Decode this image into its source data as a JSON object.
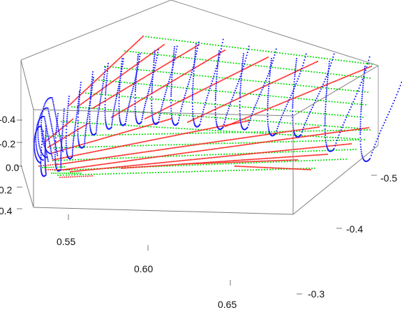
{
  "chart_data": {
    "type": "scatter",
    "title": "",
    "xlabel": "",
    "ylabel": "",
    "zlabel": "",
    "axes": {
      "x": {
        "range": [
          0.53,
          0.68
        ],
        "ticks": [
          "0.55",
          "0.60",
          "0.65"
        ]
      },
      "y": {
        "range": [
          -0.55,
          -0.25
        ],
        "ticks": [
          "-0.5",
          "-0.4",
          "-0.3"
        ]
      },
      "z": {
        "range": [
          -0.45,
          0.45
        ],
        "ticks": [
          "-0.4",
          "-0.2",
          "0.0",
          "0.2",
          "0.4"
        ]
      }
    },
    "grid": false,
    "legend": "none",
    "series_colors": {
      "blue": "#1a1aff",
      "red": "#ff2020",
      "green": "#00e000"
    },
    "series": [
      {
        "color": "blue",
        "description_values": [
          {
            "x": 0.54,
            "y": -0.51,
            "z_base": -0.03
          },
          {
            "x": 0.548,
            "y": -0.495,
            "z_base": -0.03
          },
          {
            "x": 0.556,
            "y": -0.48,
            "z_base": -0.03
          },
          {
            "x": 0.564,
            "y": -0.465,
            "z_base": -0.03
          },
          {
            "x": 0.572,
            "y": -0.45,
            "z_base": -0.03
          },
          {
            "x": 0.58,
            "y": -0.435,
            "z_base": -0.03
          },
          {
            "x": 0.588,
            "y": -0.42,
            "z_base": -0.03
          },
          {
            "x": 0.596,
            "y": -0.405,
            "z_base": -0.03
          },
          {
            "x": 0.604,
            "y": -0.39,
            "z_base": -0.03
          },
          {
            "x": 0.612,
            "y": -0.375,
            "z_base": -0.03
          },
          {
            "x": 0.62,
            "y": -0.36,
            "z_base": -0.03
          },
          {
            "x": 0.628,
            "y": -0.345,
            "z_base": -0.03
          },
          {
            "x": 0.636,
            "y": -0.33,
            "z_base": -0.03
          },
          {
            "x": 0.644,
            "y": -0.315,
            "z_base": -0.03
          }
        ]
      }
    ]
  }
}
